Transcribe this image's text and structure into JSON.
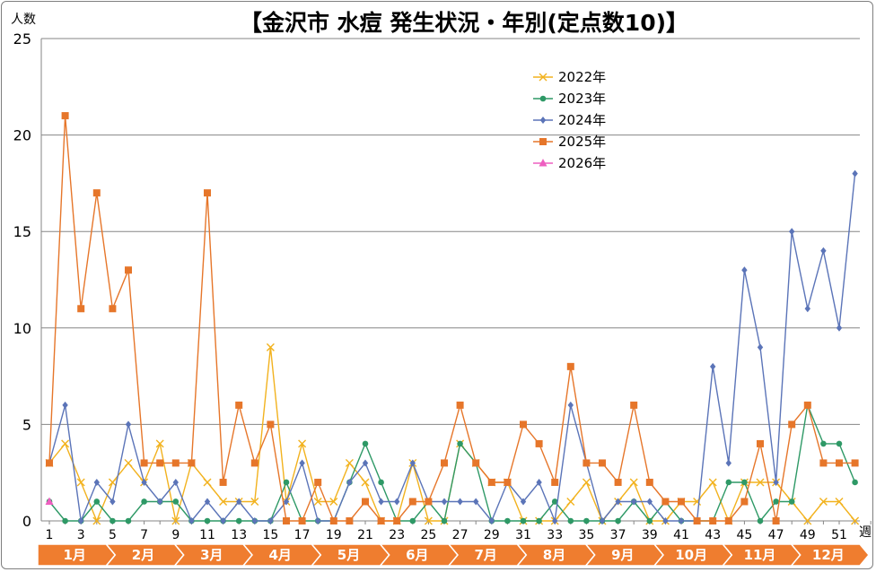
{
  "chart_data": {
    "type": "line",
    "title": "【金沢市 水痘 発生状況・年別(定点数10)】",
    "ylabel": "人数",
    "xlabel": "週",
    "ylim": [
      0,
      25
    ],
    "yticks": [
      0,
      5,
      10,
      15,
      20,
      25
    ],
    "xticks": [
      1,
      3,
      5,
      7,
      9,
      11,
      13,
      15,
      17,
      19,
      21,
      23,
      25,
      27,
      29,
      31,
      33,
      35,
      37,
      39,
      41,
      43,
      45,
      47,
      49,
      51
    ],
    "x": [
      1,
      2,
      3,
      4,
      5,
      6,
      7,
      8,
      9,
      10,
      11,
      12,
      13,
      14,
      15,
      16,
      17,
      18,
      19,
      20,
      21,
      22,
      23,
      24,
      25,
      26,
      27,
      28,
      29,
      30,
      31,
      32,
      33,
      34,
      35,
      36,
      37,
      38,
      39,
      40,
      41,
      42,
      43,
      44,
      45,
      46,
      47,
      48,
      49,
      50,
      51,
      52,
      53
    ],
    "grid": true,
    "legend_position": "top-right",
    "months": [
      "1月",
      "2月",
      "3月",
      "4月",
      "5月",
      "6月",
      "7月",
      "8月",
      "9月",
      "10月",
      "11月",
      "12月"
    ],
    "series": [
      {
        "name": "2022年",
        "color": "#f2b21e",
        "marker": "x",
        "values": [
          3,
          4,
          2,
          0,
          2,
          3,
          2,
          4,
          0,
          3,
          2,
          1,
          1,
          1,
          9,
          1,
          4,
          1,
          1,
          3,
          2,
          0,
          0,
          3,
          0,
          0,
          4,
          3,
          2,
          2,
          0,
          0,
          0,
          1,
          2,
          0,
          1,
          2,
          0,
          0,
          1,
          1,
          2,
          0,
          2,
          2,
          2,
          1,
          0,
          1,
          1,
          0,
          null
        ]
      },
      {
        "name": "2023年",
        "color": "#2e9966",
        "marker": "circle",
        "values": [
          1,
          0,
          0,
          1,
          0,
          0,
          1,
          1,
          1,
          0,
          0,
          0,
          0,
          0,
          0,
          2,
          0,
          0,
          0,
          2,
          4,
          2,
          0,
          0,
          1,
          0,
          4,
          3,
          0,
          0,
          0,
          0,
          1,
          0,
          0,
          0,
          0,
          1,
          0,
          1,
          0,
          0,
          0,
          2,
          2,
          0,
          1,
          1,
          6,
          4,
          4,
          2,
          null
        ]
      },
      {
        "name": "2024年",
        "color": "#5b74b8",
        "marker": "diamond",
        "values": [
          3,
          6,
          0,
          2,
          1,
          5,
          2,
          1,
          2,
          0,
          1,
          0,
          1,
          0,
          0,
          1,
          3,
          0,
          0,
          2,
          3,
          1,
          1,
          3,
          1,
          1,
          1,
          1,
          0,
          2,
          1,
          2,
          0,
          6,
          3,
          0,
          1,
          1,
          1,
          0,
          0,
          0,
          8,
          3,
          13,
          9,
          2,
          15,
          11,
          14,
          10,
          18,
          null
        ]
      },
      {
        "name": "2025年",
        "color": "#e6762a",
        "marker": "square",
        "values": [
          3,
          21,
          11,
          17,
          11,
          13,
          3,
          3,
          3,
          3,
          17,
          2,
          6,
          3,
          5,
          0,
          0,
          2,
          0,
          0,
          1,
          0,
          0,
          1,
          1,
          3,
          6,
          3,
          2,
          2,
          5,
          4,
          2,
          8,
          3,
          3,
          2,
          6,
          2,
          1,
          1,
          0,
          0,
          0,
          1,
          4,
          0,
          5,
          6,
          3,
          3,
          3,
          null
        ]
      },
      {
        "name": "2026年",
        "color": "#ee5fc0",
        "marker": "triangle",
        "values": [
          1,
          null,
          null,
          null,
          null,
          null,
          null,
          null,
          null,
          null,
          null,
          null,
          null,
          null,
          null,
          null,
          null,
          null,
          null,
          null,
          null,
          null,
          null,
          null,
          null,
          null,
          null,
          null,
          null,
          null,
          null,
          null,
          null,
          null,
          null,
          null,
          null,
          null,
          null,
          null,
          null,
          null,
          null,
          null,
          null,
          null,
          null,
          null,
          null,
          null,
          null,
          null,
          null
        ]
      }
    ]
  }
}
